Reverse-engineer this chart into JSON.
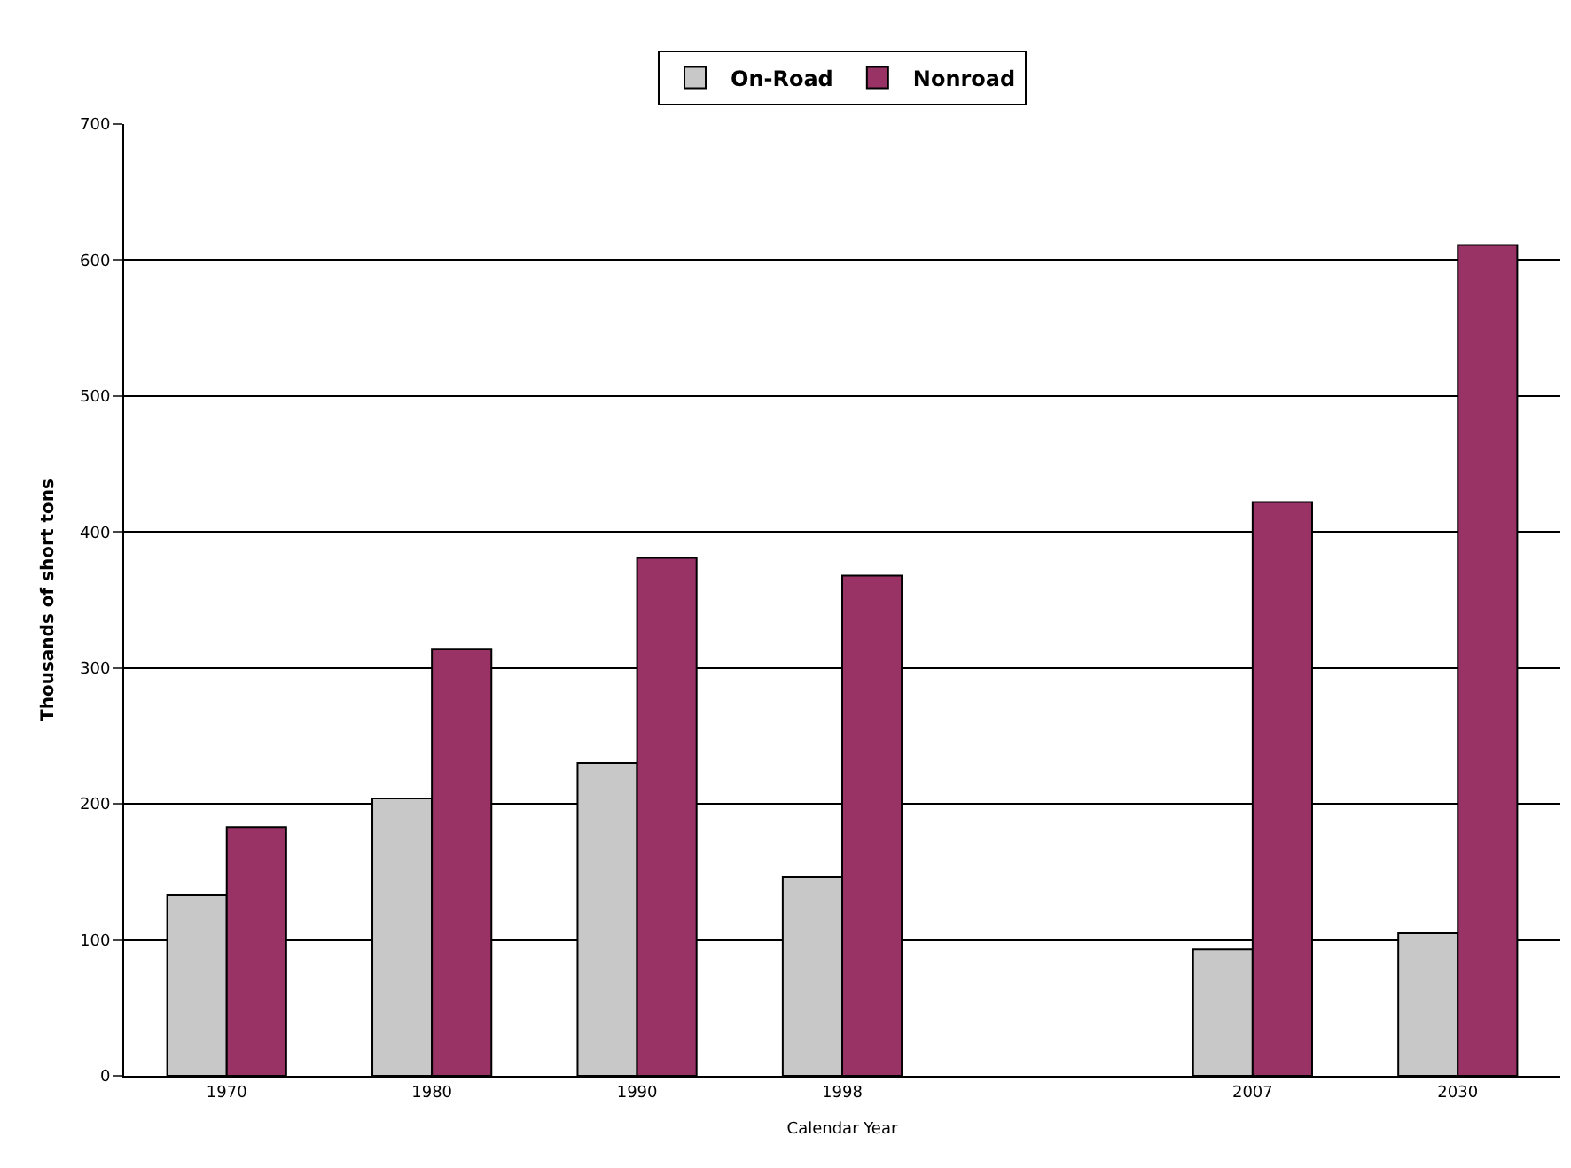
{
  "chart_data": {
    "type": "bar",
    "xlabel": "Calendar Year",
    "ylabel": "Thousands of short tons",
    "categories": [
      "1970",
      "1980",
      "1990",
      "1998",
      null,
      "2007",
      "2030"
    ],
    "series": [
      {
        "name": "On-Road",
        "color": "#c8c8c8",
        "values": [
          133,
          204,
          230,
          146,
          null,
          93,
          105
        ]
      },
      {
        "name": "Nonroad",
        "color": "#993366",
        "values": [
          183,
          314,
          381,
          368,
          null,
          422,
          611
        ]
      }
    ],
    "ylim": [
      0,
      700
    ],
    "yticks": [
      0,
      100,
      200,
      300,
      400,
      500,
      600,
      700
    ],
    "grid": "y",
    "legend": "top"
  }
}
